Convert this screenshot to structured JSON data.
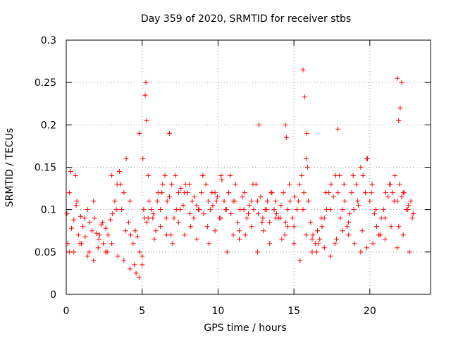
{
  "chart_data": {
    "type": "scatter",
    "title": "Day 359 of 2020, SRMTID for receiver stbs",
    "xlabel": "GPS time / hours",
    "ylabel": "SRMTID / TECUs",
    "xlim": [
      0,
      24
    ],
    "ylim": [
      0,
      0.3
    ],
    "grid": true,
    "marker": "+",
    "marker_color": "#ff0000",
    "x_ticks": [
      0,
      5,
      10,
      15,
      20
    ],
    "x_tick_labels": [
      "0",
      "5",
      "10",
      "15",
      "20"
    ],
    "y_ticks": [
      0,
      0.05,
      0.1,
      0.15,
      0.2,
      0.25,
      0.3
    ],
    "y_tick_labels": [
      "0",
      "0.05",
      "0.1",
      "0.15",
      "0.2",
      "0.25",
      "0.3"
    ],
    "series": [
      {
        "name": "SRMTID",
        "x": [
          0.05,
          0.2,
          0.35,
          0.5,
          0.65,
          0.8,
          0.95,
          1.1,
          1.25,
          1.4,
          1.55,
          1.7,
          1.85,
          2.0,
          2.15,
          2.3,
          2.45,
          2.6,
          2.75,
          2.9,
          3.05,
          3.2,
          3.35,
          3.5,
          3.65,
          3.8,
          3.95,
          4.1,
          4.25,
          4.4,
          4.55,
          4.7,
          4.85,
          5.0,
          5.15,
          5.3,
          5.45,
          5.6,
          5.75,
          5.9,
          6.05,
          6.2,
          6.35,
          6.5,
          6.65,
          6.8,
          6.95,
          7.1,
          7.25,
          7.4,
          7.55,
          7.7,
          7.85,
          8.0,
          8.15,
          8.3,
          8.45,
          8.6,
          8.75,
          8.9,
          9.05,
          9.2,
          9.35,
          9.5,
          9.65,
          9.8,
          9.95,
          10.1,
          10.25,
          10.4,
          10.55,
          10.7,
          10.85,
          11.0,
          11.15,
          11.3,
          11.45,
          11.6,
          11.75,
          11.9,
          12.05,
          12.2,
          12.35,
          12.5,
          12.65,
          12.8,
          12.95,
          13.1,
          13.25,
          13.4,
          13.55,
          13.7,
          13.85,
          14.0,
          14.15,
          14.3,
          14.45,
          14.6,
          14.75,
          14.9,
          15.05,
          15.2,
          15.35,
          15.5,
          15.65,
          15.8,
          15.95,
          16.1,
          16.25,
          16.4,
          16.55,
          16.7,
          16.85,
          17.0,
          17.15,
          17.3,
          17.45,
          17.6,
          17.75,
          17.9,
          18.05,
          18.2,
          18.35,
          18.5,
          18.65,
          18.8,
          18.95,
          19.1,
          19.25,
          19.4,
          19.55,
          19.7,
          19.85,
          20.0,
          20.15,
          20.3,
          20.45,
          20.6,
          20.75,
          20.9,
          21.05,
          21.2,
          21.35,
          21.5,
          21.65,
          21.8,
          21.95,
          22.1,
          22.25,
          22.4,
          22.55,
          22.7,
          22.85,
          0.1,
          0.3,
          0.5,
          0.7,
          0.9,
          1.2,
          1.5,
          1.8,
          2.1,
          2.4,
          2.7,
          3.0,
          3.3,
          3.6,
          3.9,
          4.2,
          4.5,
          4.8,
          5.1,
          5.4,
          5.7,
          6.0,
          6.3,
          6.6,
          6.9,
          7.2,
          7.5,
          7.8,
          8.1,
          8.4,
          8.7,
          9.0,
          9.3,
          9.6,
          9.9,
          10.2,
          10.5,
          10.8,
          11.1,
          11.4,
          11.7,
          12.0,
          12.3,
          12.6,
          12.9,
          13.2,
          13.5,
          13.8,
          14.1,
          14.4,
          14.7,
          15.0,
          15.3,
          15.6,
          15.9,
          16.2,
          16.5,
          16.8,
          17.1,
          17.4,
          17.7,
          18.0,
          18.3,
          18.6,
          18.9,
          19.2,
          19.5,
          19.8,
          20.1,
          20.4,
          20.7,
          21.0,
          21.3,
          21.6,
          21.9,
          22.2,
          22.5,
          22.8,
          0.2,
          0.6,
          1.0,
          1.4,
          1.8,
          2.2,
          2.6,
          3.0,
          3.4,
          3.8,
          4.2,
          4.6,
          5.0,
          5.4,
          5.8,
          6.2,
          6.6,
          7.0,
          7.4,
          7.8,
          8.2,
          8.6,
          9.0,
          9.4,
          9.8,
          10.2,
          10.6,
          11.0,
          11.4,
          11.8,
          12.2,
          12.6,
          13.0,
          13.4,
          13.8,
          14.2,
          14.6,
          15.0,
          15.4,
          15.8,
          16.2,
          16.6,
          17.0,
          17.4,
          17.8,
          18.2,
          18.6,
          19.0,
          19.4,
          19.8,
          20.2,
          20.6,
          21.0,
          21.4,
          21.8,
          22.2,
          22.6,
          4.8,
          5.05,
          5.2,
          5.25,
          5.3,
          15.6,
          15.7,
          15.85,
          22.0,
          22.1,
          21.8,
          21.9,
          6.8,
          12.7,
          14.45,
          14.5,
          17.9
        ],
        "y": [
          0.095,
          0.12,
          0.078,
          0.088,
          0.105,
          0.07,
          0.092,
          0.08,
          0.068,
          0.1,
          0.085,
          0.075,
          0.09,
          0.072,
          0.065,
          0.082,
          0.06,
          0.078,
          0.07,
          0.088,
          0.095,
          0.11,
          0.13,
          0.145,
          0.1,
          0.12,
          0.16,
          0.085,
          0.07,
          0.06,
          0.075,
          0.068,
          0.05,
          0.045,
          0.09,
          0.085,
          0.11,
          0.1,
          0.095,
          0.075,
          0.12,
          0.1,
          0.13,
          0.14,
          0.11,
          0.115,
          0.13,
          0.09,
          0.1,
          0.12,
          0.125,
          0.105,
          0.13,
          0.12,
          0.095,
          0.11,
          0.115,
          0.105,
          0.1,
          0.12,
          0.095,
          0.13,
          0.11,
          0.1,
          0.105,
          0.12,
          0.115,
          0.09,
          0.135,
          0.11,
          0.1,
          0.12,
          0.095,
          0.11,
          0.13,
          0.085,
          0.1,
          0.115,
          0.12,
          0.09,
          0.105,
          0.11,
          0.1,
          0.13,
          0.095,
          0.115,
          0.09,
          0.1,
          0.11,
          0.085,
          0.12,
          0.1,
          0.095,
          0.09,
          0.105,
          0.12,
          0.085,
          0.1,
          0.11,
          0.09,
          0.115,
          0.1,
          0.13,
          0.14,
          0.12,
          0.16,
          0.11,
          0.085,
          0.07,
          0.06,
          0.075,
          0.065,
          0.08,
          0.09,
          0.1,
          0.12,
          0.13,
          0.115,
          0.14,
          0.12,
          0.09,
          0.1,
          0.11,
          0.08,
          0.095,
          0.12,
          0.1,
          0.13,
          0.105,
          0.15,
          0.14,
          0.12,
          0.16,
          0.11,
          0.13,
          0.095,
          0.08,
          0.07,
          0.09,
          0.1,
          0.12,
          0.115,
          0.13,
          0.12,
          0.14,
          0.11,
          0.13,
          0.115,
          0.12,
          0.1,
          0.105,
          0.11,
          0.095,
          0.06,
          0.145,
          0.05,
          0.11,
          0.06,
          0.09,
          0.05,
          0.04,
          0.055,
          0.085,
          0.05,
          0.06,
          0.1,
          0.13,
          0.075,
          0.11,
          0.035,
          0.02,
          0.1,
          0.14,
          0.09,
          0.11,
          0.12,
          0.09,
          0.07,
          0.14,
          0.1,
          0.12,
          0.13,
          0.09,
          0.1,
          0.14,
          0.08,
          0.12,
          0.11,
          0.09,
          0.1,
          0.14,
          0.11,
          0.075,
          0.1,
          0.095,
          0.13,
          0.11,
          0.085,
          0.1,
          0.12,
          0.11,
          0.09,
          0.07,
          0.13,
          0.08,
          0.11,
          0.1,
          0.15,
          0.065,
          0.05,
          0.09,
          0.12,
          0.1,
          0.06,
          0.14,
          0.13,
          0.085,
          0.14,
          0.11,
          0.075,
          0.16,
          0.12,
          0.1,
          0.07,
          0.09,
          0.13,
          0.11,
          0.08,
          0.12,
          0.1,
          0.09,
          0.05,
          0.14,
          0.06,
          0.045,
          0.11,
          0.07,
          0.05,
          0.14,
          0.045,
          0.04,
          0.03,
          0.025,
          0.035,
          0.09,
          0.065,
          0.08,
          0.07,
          0.06,
          0.085,
          0.07,
          0.08,
          0.065,
          0.14,
          0.06,
          0.075,
          0.14,
          0.05,
          0.07,
          0.065,
          0.07,
          0.08,
          0.05,
          0.075,
          0.06,
          0.09,
          0.065,
          0.08,
          0.06,
          0.04,
          0.07,
          0.05,
          0.06,
          0.055,
          0.045,
          0.065,
          0.075,
          0.07,
          0.06,
          0.05,
          0.055,
          0.06,
          0.07,
          0.065,
          0.08,
          0.055,
          0.07,
          0.05,
          0.19,
          0.16,
          0.235,
          0.25,
          0.205,
          0.265,
          0.233,
          0.19,
          0.22,
          0.25,
          0.255,
          0.205,
          0.19,
          0.2,
          0.2,
          0.185,
          0.195
        ]
      }
    ]
  }
}
